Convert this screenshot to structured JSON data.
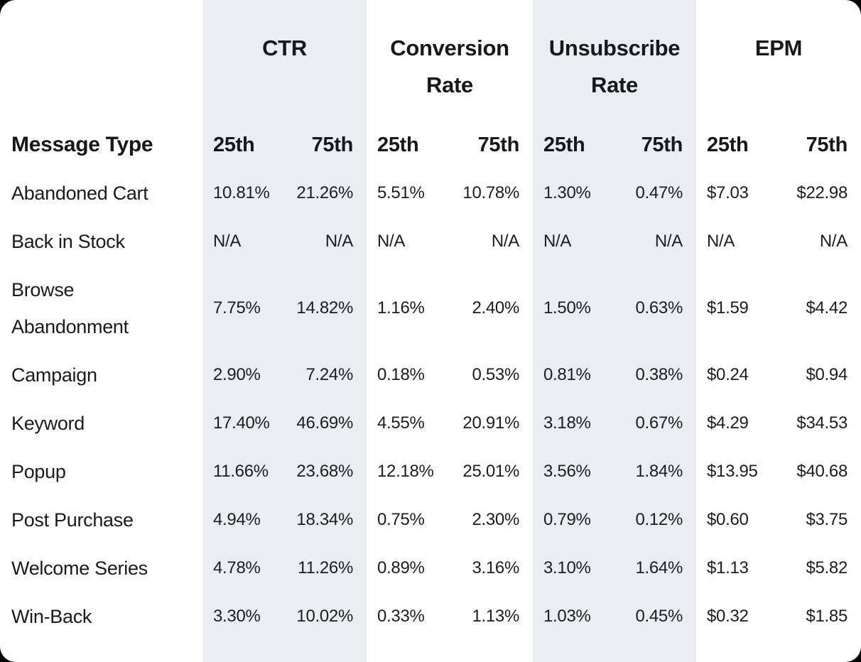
{
  "colors": {
    "page_background": "#000000",
    "card_background": "#ffffff",
    "column_highlight": "#ececf4",
    "text": "#17171c"
  },
  "chart_data": {
    "type": "table",
    "corner_label": "Message Type",
    "column_groups": [
      {
        "label": "CTR",
        "sub_columns": [
          "25th",
          "75th"
        ],
        "highlighted": true
      },
      {
        "label": "Conversion Rate",
        "sub_columns": [
          "25th",
          "75th"
        ],
        "highlighted": false
      },
      {
        "label": "Unsubscribe Rate",
        "sub_columns": [
          "25th",
          "75th"
        ],
        "highlighted": true
      },
      {
        "label": "EPM",
        "sub_columns": [
          "25th",
          "75th"
        ],
        "highlighted": false
      }
    ],
    "sub_headers": [
      "25th",
      "75th"
    ],
    "rows": [
      {
        "label": "Abandoned Cart",
        "values": [
          "10.81%",
          "21.26%",
          "5.51%",
          "10.78%",
          "1.30%",
          "0.47%",
          "$7.03",
          "$22.98"
        ]
      },
      {
        "label": "Back in Stock",
        "values": [
          "N/A",
          "N/A",
          "N/A",
          "N/A",
          "N/A",
          "N/A",
          "N/A",
          "N/A"
        ]
      },
      {
        "label": "Browse Abandonment",
        "values": [
          "7.75%",
          "14.82%",
          "1.16%",
          "2.40%",
          "1.50%",
          "0.63%",
          "$1.59",
          "$4.42"
        ]
      },
      {
        "label": "Campaign",
        "values": [
          "2.90%",
          "7.24%",
          "0.18%",
          "0.53%",
          "0.81%",
          "0.38%",
          "$0.24",
          "$0.94"
        ]
      },
      {
        "label": "Keyword",
        "values": [
          "17.40%",
          "46.69%",
          "4.55%",
          "20.91%",
          "3.18%",
          "0.67%",
          "$4.29",
          "$34.53"
        ]
      },
      {
        "label": "Popup",
        "values": [
          "11.66%",
          "23.68%",
          "12.18%",
          "25.01%",
          "3.56%",
          "1.84%",
          "$13.95",
          "$40.68"
        ]
      },
      {
        "label": "Post Purchase",
        "values": [
          "4.94%",
          "18.34%",
          "0.75%",
          "2.30%",
          "0.79%",
          "0.12%",
          "$0.60",
          "$3.75"
        ]
      },
      {
        "label": "Welcome Series",
        "values": [
          "4.78%",
          "11.26%",
          "0.89%",
          "3.16%",
          "3.10%",
          "1.64%",
          "$1.13",
          "$5.82"
        ]
      },
      {
        "label": "Win-Back",
        "values": [
          "3.30%",
          "10.02%",
          "0.33%",
          "1.13%",
          "1.03%",
          "0.45%",
          "$0.32",
          "$1.85"
        ]
      }
    ]
  }
}
